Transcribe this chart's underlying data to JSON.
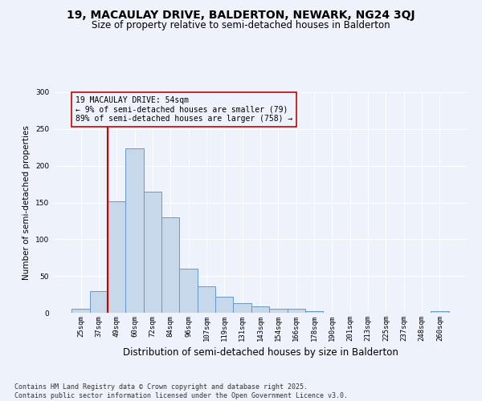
{
  "title": "19, MACAULAY DRIVE, BALDERTON, NEWARK, NG24 3QJ",
  "subtitle": "Size of property relative to semi-detached houses in Balderton",
  "xlabel": "Distribution of semi-detached houses by size in Balderton",
  "ylabel": "Number of semi-detached properties",
  "categories": [
    "25sqm",
    "37sqm",
    "49sqm",
    "60sqm",
    "72sqm",
    "84sqm",
    "96sqm",
    "107sqm",
    "119sqm",
    "131sqm",
    "143sqm",
    "154sqm",
    "166sqm",
    "178sqm",
    "190sqm",
    "201sqm",
    "213sqm",
    "225sqm",
    "237sqm",
    "248sqm",
    "260sqm"
  ],
  "values": [
    5,
    30,
    152,
    224,
    165,
    130,
    60,
    36,
    22,
    13,
    9,
    6,
    5,
    2,
    0,
    0,
    0,
    0,
    0,
    0,
    2
  ],
  "bar_color": "#c8d8eb",
  "bar_edge_color": "#6699cc",
  "vline_x_index": 2,
  "vline_color": "#cc0000",
  "annotation_text": "19 MACAULAY DRIVE: 54sqm\n← 9% of semi-detached houses are smaller (79)\n89% of semi-detached houses are larger (758) →",
  "annotation_box_color": "#cc0000",
  "background_color": "#eef2fa",
  "grid_color": "#ffffff",
  "footer_line1": "Contains HM Land Registry data © Crown copyright and database right 2025.",
  "footer_line2": "Contains public sector information licensed under the Open Government Licence v3.0.",
  "ylim": [
    0,
    300
  ],
  "yticks": [
    0,
    50,
    100,
    150,
    200,
    250,
    300
  ],
  "title_fontsize": 10,
  "subtitle_fontsize": 8.5,
  "xlabel_fontsize": 8.5,
  "ylabel_fontsize": 7.5,
  "tick_fontsize": 6.5,
  "footer_fontsize": 6.0,
  "annotation_fontsize": 7.0
}
